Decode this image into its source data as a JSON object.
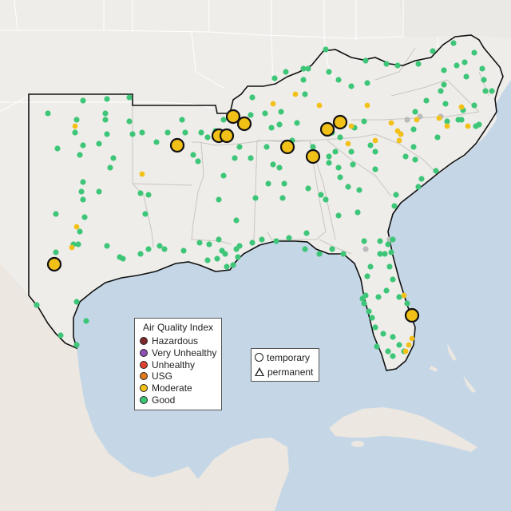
{
  "legend": {
    "title": "Air Quality Index",
    "categories": [
      {
        "label": "Hazardous",
        "color": "#7e2a2a"
      },
      {
        "label": "Very Unhealthy",
        "color": "#8e4fb5"
      },
      {
        "label": "Unhealthy",
        "color": "#e0412f"
      },
      {
        "label": "USG",
        "color": "#e07a1c"
      },
      {
        "label": "Moderate",
        "color": "#f2c118"
      },
      {
        "label": "Good",
        "color": "#3ec678"
      }
    ]
  },
  "monitor_types": {
    "temporary": "temporary",
    "permanent": "permanent"
  },
  "colors": {
    "water": "#c5d7e7",
    "land": "#efedea",
    "border": "#111111",
    "boundary": "#ffffff",
    "inactive": "#bbbbbb"
  }
}
